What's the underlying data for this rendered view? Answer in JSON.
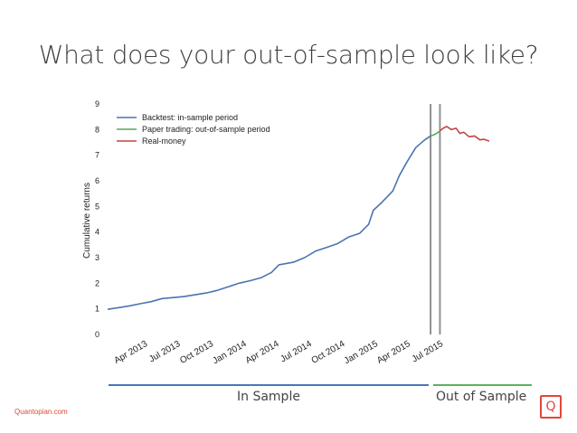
{
  "slide": {
    "title": "What does your out-of-sample look like?",
    "in_sample_label": "In Sample",
    "out_sample_label": "Out of Sample",
    "footer_site": "Quantopian.com",
    "logo_text": "Q",
    "colors": {
      "in_sample_bar": "#4a78b3",
      "out_sample_bar": "#5bb35b",
      "brand": "#e2473a"
    }
  },
  "chart_data": {
    "type": "line",
    "title": "",
    "xlabel": "",
    "ylabel": "Cumulative returns",
    "ylim": [
      0,
      9
    ],
    "xlim": [
      "2012-12-20",
      "2015-11-15"
    ],
    "grid": false,
    "legend_position": "top-left",
    "yticks": [
      "0",
      "1",
      "2",
      "3",
      "4",
      "5",
      "6",
      "7",
      "8",
      "9"
    ],
    "xticks": [
      {
        "date": "2013-04-01",
        "label": "Apr 2013"
      },
      {
        "date": "2013-07-01",
        "label": "Jul 2013"
      },
      {
        "date": "2013-10-01",
        "label": "Oct 2013"
      },
      {
        "date": "2014-01-01",
        "label": "Jan 2014"
      },
      {
        "date": "2014-04-01",
        "label": "Apr 2014"
      },
      {
        "date": "2014-07-01",
        "label": "Jul 2014"
      },
      {
        "date": "2014-10-01",
        "label": "Oct 2014"
      },
      {
        "date": "2015-01-01",
        "label": "Jan 2015"
      },
      {
        "date": "2015-04-01",
        "label": "Apr 2015"
      },
      {
        "date": "2015-07-01",
        "label": "Jul 2015"
      }
    ],
    "vlines": [
      "2015-06-05",
      "2015-07-01"
    ],
    "series": [
      {
        "name": "Backtest: in-sample period",
        "color": "#4a74b0",
        "points": [
          [
            "2012-12-20",
            0.98
          ],
          [
            "2013-01-20",
            1.05
          ],
          [
            "2013-02-20",
            1.12
          ],
          [
            "2013-03-20",
            1.2
          ],
          [
            "2013-04-20",
            1.28
          ],
          [
            "2013-05-20",
            1.4
          ],
          [
            "2013-06-20",
            1.44
          ],
          [
            "2013-07-20",
            1.48
          ],
          [
            "2013-08-20",
            1.55
          ],
          [
            "2013-09-20",
            1.62
          ],
          [
            "2013-10-20",
            1.72
          ],
          [
            "2013-11-20",
            1.86
          ],
          [
            "2013-12-20",
            2.0
          ],
          [
            "2014-01-20",
            2.1
          ],
          [
            "2014-02-20",
            2.22
          ],
          [
            "2014-03-20",
            2.42
          ],
          [
            "2014-04-10",
            2.72
          ],
          [
            "2014-05-20",
            2.82
          ],
          [
            "2014-06-20",
            3.0
          ],
          [
            "2014-07-20",
            3.25
          ],
          [
            "2014-08-20",
            3.4
          ],
          [
            "2014-09-20",
            3.55
          ],
          [
            "2014-10-20",
            3.8
          ],
          [
            "2014-11-20",
            3.95
          ],
          [
            "2014-12-15",
            4.3
          ],
          [
            "2014-12-28",
            4.85
          ],
          [
            "2015-01-20",
            5.15
          ],
          [
            "2015-02-20",
            5.6
          ],
          [
            "2015-03-10",
            6.2
          ],
          [
            "2015-04-01",
            6.75
          ],
          [
            "2015-04-25",
            7.3
          ],
          [
            "2015-05-20",
            7.6
          ],
          [
            "2015-06-05",
            7.75
          ]
        ]
      },
      {
        "name": "Paper trading: out-of-sample period",
        "color": "#55aa55",
        "points": [
          [
            "2015-06-05",
            7.75
          ],
          [
            "2015-06-15",
            7.8
          ],
          [
            "2015-06-25",
            7.88
          ],
          [
            "2015-07-01",
            7.95
          ]
        ]
      },
      {
        "name": "Real-money",
        "color": "#c44444",
        "points": [
          [
            "2015-07-01",
            7.95
          ],
          [
            "2015-07-10",
            8.05
          ],
          [
            "2015-07-20",
            8.12
          ],
          [
            "2015-08-01",
            8.0
          ],
          [
            "2015-08-15",
            8.05
          ],
          [
            "2015-08-25",
            7.85
          ],
          [
            "2015-09-05",
            7.9
          ],
          [
            "2015-09-20",
            7.72
          ],
          [
            "2015-10-05",
            7.75
          ],
          [
            "2015-10-20",
            7.6
          ],
          [
            "2015-11-01",
            7.62
          ],
          [
            "2015-11-15",
            7.55
          ]
        ]
      }
    ]
  }
}
